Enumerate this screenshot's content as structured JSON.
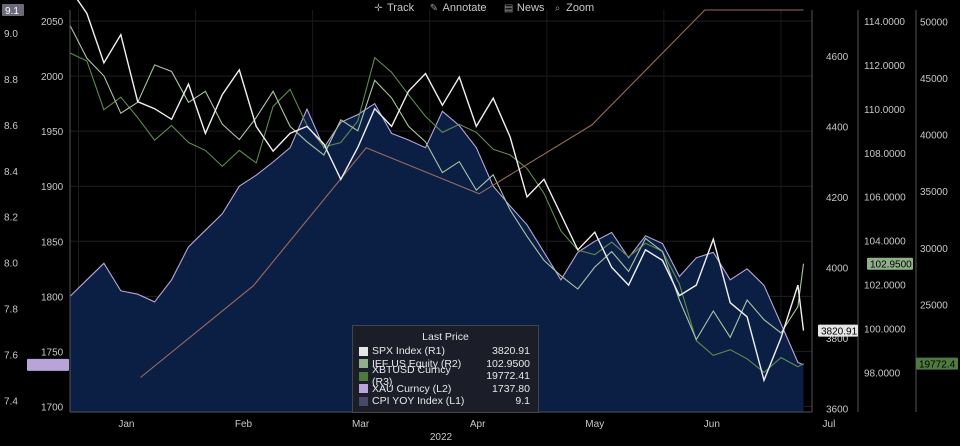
{
  "toolbar": {
    "items": [
      {
        "label": "Track",
        "icon": "crosshair-icon",
        "glyph": "✛"
      },
      {
        "label": "Annotate",
        "icon": "pencil-icon",
        "glyph": "✎"
      },
      {
        "label": "News",
        "icon": "news-icon",
        "glyph": "▤"
      },
      {
        "label": "Zoom",
        "icon": "magnifier-icon",
        "glyph": "⌕"
      }
    ]
  },
  "legend": {
    "title": "Last Price",
    "entries": [
      {
        "name": "SPX Index  (R1)",
        "value": "3820.91",
        "color": "#e6e6e6"
      },
      {
        "name": "IEF US Equity  (R2)",
        "value": "102.9500",
        "color": "#8fb08a"
      },
      {
        "name": "XBTUSD Curncy  (R3)",
        "value": "19772.41",
        "color": "#4f7a3f"
      },
      {
        "name": "XAU Curncy  (L2)",
        "value": "1737.80",
        "color": "#b8a4d8"
      },
      {
        "name": "CPI YOY Index  (L1)",
        "value": "9.1",
        "color": "#4a4868"
      }
    ]
  },
  "chart_data": {
    "type": "line",
    "xlabel": "2022",
    "x_ticks": [
      "Jan",
      "Feb",
      "Mar",
      "Apr",
      "May",
      "Jun",
      "Jul"
    ],
    "axes": {
      "L1": {
        "ticks": [
          "9.0",
          "8.8",
          "8.6",
          "8.4",
          "8.2",
          "8.0",
          "7.8",
          "7.6",
          "7.4"
        ],
        "range": [
          7.35,
          9.1
        ]
      },
      "L2": {
        "ticks": [
          "2050",
          "2000",
          "1950",
          "1900",
          "1850",
          "1800",
          "1750",
          "1700"
        ],
        "range": [
          1695,
          2060
        ]
      },
      "R1": {
        "ticks": [
          "4600",
          "4400",
          "4200",
          "4000",
          "3800",
          "3600"
        ],
        "range": [
          3590,
          4730
        ]
      },
      "R2": {
        "ticks": [
          "114.0000",
          "112.0000",
          "110.0000",
          "108.0000",
          "106.0000",
          "104.0000",
          "102.0000",
          "100.0000",
          "98.0000"
        ],
        "range": [
          96.2,
          114.5
        ]
      },
      "R3": {
        "ticks": [
          "50000",
          "45000",
          "40000",
          "35000",
          "30000",
          "25000",
          "20000"
        ],
        "range": [
          15500,
          51000
        ]
      }
    },
    "last_price_tags": [
      {
        "axis": "L1",
        "text": "9.1",
        "value": 9.1,
        "bg": "#6a6a7a",
        "fg": "#ffffff"
      },
      {
        "axis": "L2",
        "text": "",
        "value": 1737.8,
        "bg": "#b8a4d8",
        "fg": "#000000"
      },
      {
        "axis": "R1",
        "text": "3820.91",
        "value": 3820.91,
        "bg": "#e6e6e6",
        "fg": "#000000"
      },
      {
        "axis": "R2",
        "text": "102.9500",
        "value": 102.95,
        "bg": "#8fb08a",
        "fg": "#000000"
      },
      {
        "axis": "R3",
        "text": "19772.4",
        "value": 19772.41,
        "bg": "#4f7a3f",
        "fg": "#000000"
      }
    ],
    "series": [
      {
        "name": "SPX Index  (R1)",
        "axis": "R1",
        "color": "#f0f0f0",
        "t": [
          0,
          0.6,
          1.2,
          1.8,
          2.4,
          3,
          3.6,
          4.2,
          4.8,
          5.4,
          6,
          6.6,
          7.2,
          7.8,
          8.4,
          9,
          9.6,
          10.2,
          10.8,
          11.4,
          12,
          12.6,
          13.2,
          13.8,
          14.4,
          15,
          15.6,
          16.2,
          16.8,
          17.4,
          18,
          18.6,
          19.2,
          19.8,
          20.4,
          21,
          21.6,
          22.2,
          22.8,
          23.4,
          24,
          24.6,
          25.2,
          25.8,
          26
        ],
        "v": [
          4790,
          4720,
          4580,
          4660,
          4470,
          4450,
          4420,
          4520,
          4380,
          4490,
          4560,
          4400,
          4330,
          4380,
          4400,
          4350,
          4250,
          4340,
          4450,
          4400,
          4500,
          4550,
          4460,
          4540,
          4400,
          4480,
          4370,
          4200,
          4250,
          4150,
          4050,
          4100,
          4000,
          3950,
          4050,
          4020,
          3920,
          3950,
          4080,
          3900,
          3860,
          3680,
          3800,
          3950,
          3820.91
        ]
      },
      {
        "name": "IEF US Equity  (R2)",
        "axis": "R2",
        "color": "#a9c6a4",
        "t": [
          0,
          0.6,
          1.2,
          1.8,
          2.4,
          3,
          3.6,
          4.2,
          4.8,
          5.4,
          6,
          6.6,
          7.2,
          7.8,
          8.4,
          9,
          9.6,
          10.2,
          10.8,
          11.4,
          12,
          12.6,
          13.2,
          13.8,
          14.4,
          15,
          15.6,
          16.2,
          16.8,
          17.4,
          18,
          18.6,
          19.2,
          19.8,
          20.4,
          21,
          21.6,
          22.2,
          22.8,
          23.4,
          24,
          24.6,
          25.2,
          25.8,
          26
        ],
        "v": [
          113.8,
          112.3,
          111.5,
          109.8,
          110.3,
          112.0,
          111.7,
          110.3,
          110.8,
          109.3,
          108.6,
          109.6,
          110.8,
          109.2,
          108.5,
          107.9,
          109.5,
          109.0,
          111.3,
          110.5,
          109.2,
          108.5,
          107.1,
          107.6,
          106.3,
          107.0,
          105.4,
          104.2,
          103.1,
          102.4,
          101.8,
          102.8,
          103.5,
          102.6,
          104.1,
          103.5,
          101.3,
          99.5,
          100.8,
          99.6,
          101.3,
          100.4,
          99.8,
          101.0,
          102.95
        ]
      },
      {
        "name": "XBTUSD Curncy  (R3)",
        "axis": "R3",
        "color": "#5e8a4e",
        "t": [
          0,
          0.6,
          1.2,
          1.8,
          2.4,
          3,
          3.6,
          4.2,
          4.8,
          5.4,
          6,
          6.6,
          7.2,
          7.8,
          8.4,
          9,
          9.6,
          10.2,
          10.8,
          11.4,
          12,
          12.6,
          13.2,
          13.8,
          14.4,
          15,
          15.6,
          16.2,
          16.8,
          17.4,
          18,
          18.6,
          19.2,
          19.8,
          20.4,
          21,
          21.6,
          22.2,
          22.8,
          23.4,
          24,
          24.6,
          25.2,
          25.8,
          26
        ],
        "v": [
          47200,
          46500,
          42200,
          43300,
          41500,
          39500,
          40800,
          39300,
          38600,
          37200,
          38600,
          37500,
          42500,
          44000,
          40800,
          38900,
          39300,
          41200,
          46800,
          45500,
          43500,
          41600,
          40200,
          40900,
          40200,
          38700,
          38200,
          37000,
          34800,
          31500,
          29800,
          29400,
          30500,
          29200,
          30400,
          29700,
          26800,
          21800,
          20500,
          21000,
          20200,
          19000,
          20300,
          19500,
          19772.41
        ]
      },
      {
        "name": "XAU Curncy  (L2)",
        "axis": "L2",
        "color": "#b8a4d8",
        "t": [
          0,
          0.6,
          1.2,
          1.8,
          2.4,
          3,
          3.6,
          4.2,
          4.8,
          5.4,
          6,
          6.6,
          7.2,
          7.8,
          8.4,
          9,
          9.6,
          10.2,
          10.8,
          11.4,
          12,
          12.6,
          13.2,
          13.8,
          14.4,
          15,
          15.6,
          16.2,
          16.8,
          17.4,
          18,
          18.6,
          19.2,
          19.8,
          20.4,
          21,
          21.6,
          22.2,
          22.8,
          23.4,
          24,
          24.6,
          25.2,
          25.8,
          26
        ],
        "v": [
          1800,
          1815,
          1830,
          1805,
          1802,
          1795,
          1815,
          1845,
          1860,
          1875,
          1900,
          1910,
          1922,
          1935,
          1970,
          1935,
          1958,
          1965,
          1975,
          1948,
          1942,
          1935,
          1968,
          1955,
          1935,
          1900,
          1882,
          1865,
          1840,
          1815,
          1840,
          1850,
          1858,
          1835,
          1855,
          1848,
          1818,
          1835,
          1840,
          1815,
          1825,
          1810,
          1775,
          1740,
          1737.8
        ]
      },
      {
        "name": "CPI YOY Index  (L1)",
        "axis": "L1",
        "color": "#9c6a5e",
        "t": [
          2.5,
          6.5,
          10.5,
          14.5,
          18.5,
          22.5,
          26
        ],
        "v": [
          7.5,
          7.9,
          8.5,
          8.3,
          8.6,
          9.1,
          9.1
        ]
      }
    ]
  }
}
